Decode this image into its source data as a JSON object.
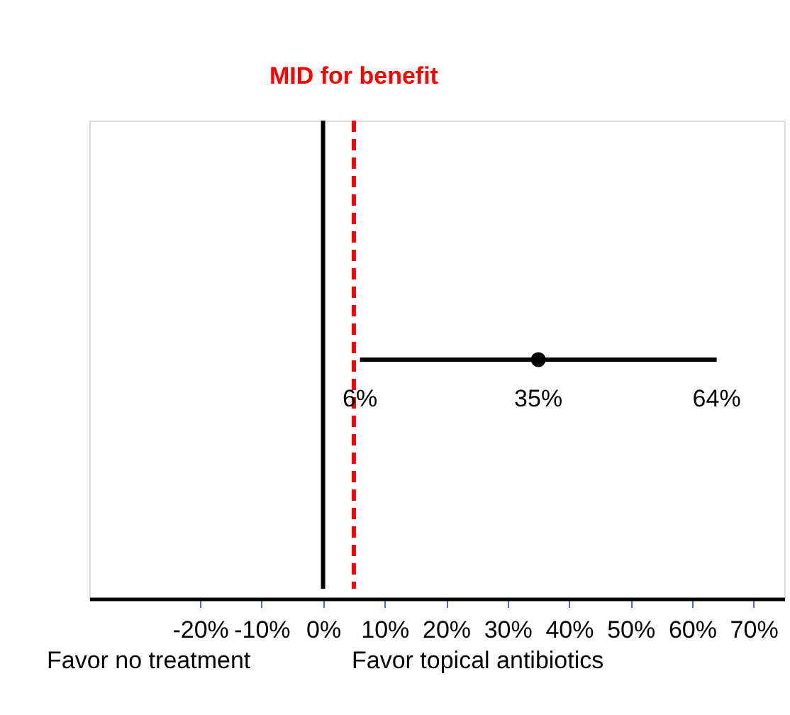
{
  "chart_data": {
    "type": "scatter",
    "orientation": "horizontal",
    "categories": [
      null
    ],
    "values": [
      35
    ],
    "errors": [
      [
        6,
        64
      ]
    ],
    "color": "#000000",
    "marker": "circle",
    "value_labels": [
      "35%"
    ],
    "annotations": [
      "6%",
      "64%",
      "Favor no treatment",
      "Favor topical antibiotics"
    ],
    "xlim": [
      -38,
      75
    ],
    "xticks": [
      {
        "value": -20,
        "label": "-20%"
      },
      {
        "value": -10,
        "label": "-10%"
      },
      {
        "value": 0,
        "label": "0%"
      },
      {
        "value": 10,
        "label": "10%"
      },
      {
        "value": 20,
        "label": "20%"
      },
      {
        "value": 30,
        "label": "30%"
      },
      {
        "value": 40,
        "label": "40%"
      },
      {
        "value": 50,
        "label": "50%"
      },
      {
        "value": 60,
        "label": "60%"
      },
      {
        "value": 70,
        "label": "70%"
      }
    ],
    "ref_lines": [
      {
        "axis": "x",
        "value": 0,
        "color": "#000000",
        "line_style": "solid"
      },
      {
        "axis": "x",
        "value": 5,
        "label": "MID for benefit",
        "color": "#ff0000",
        "line_style": "dashed"
      }
    ],
    "grid": false
  }
}
